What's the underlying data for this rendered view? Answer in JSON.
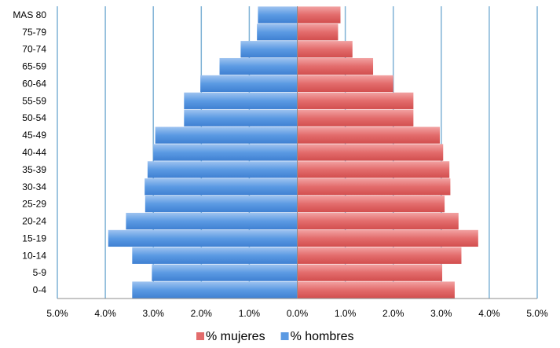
{
  "chart_data": {
    "type": "bar",
    "orientation": "horizontal",
    "categories": [
      "MAS 80",
      "75-79",
      "70-74",
      "65-59",
      "60-64",
      "55-59",
      "50-54",
      "45-49",
      "40-44",
      "35-39",
      "30-34",
      "25-29",
      "20-24",
      "15-19",
      "10-14",
      "5-9",
      "0-4"
    ],
    "series": [
      {
        "name": "% mujeres",
        "color": "#e36c6c",
        "side": "right",
        "values": [
          0.9,
          0.85,
          1.15,
          1.58,
          2.0,
          2.42,
          2.42,
          2.97,
          3.04,
          3.17,
          3.19,
          3.07,
          3.36,
          3.77,
          3.42,
          3.02,
          3.28
        ]
      },
      {
        "name": "% hombres",
        "color": "#5b9ae3",
        "side": "left",
        "values": [
          0.82,
          0.84,
          1.18,
          1.62,
          2.02,
          2.36,
          2.36,
          2.96,
          3.0,
          3.12,
          3.18,
          3.17,
          3.57,
          3.94,
          3.44,
          3.03,
          3.44
        ]
      }
    ],
    "xlim": [
      -5.0,
      5.0
    ],
    "xticks": [
      -5,
      -4,
      -3,
      -2,
      -1,
      0,
      1,
      2,
      3,
      4,
      5
    ],
    "xtick_labels": [
      "5.0%",
      "4.0%",
      "3.0%",
      "2.0%",
      "1.0%",
      "0.0%",
      "1.0%",
      "2.0%",
      "3.0%",
      "4.0%",
      "5.0%"
    ],
    "grid": "vertical",
    "grid_color": "#7fb2d6",
    "legend_position": "bottom",
    "title": "",
    "xlabel": "",
    "ylabel": ""
  }
}
